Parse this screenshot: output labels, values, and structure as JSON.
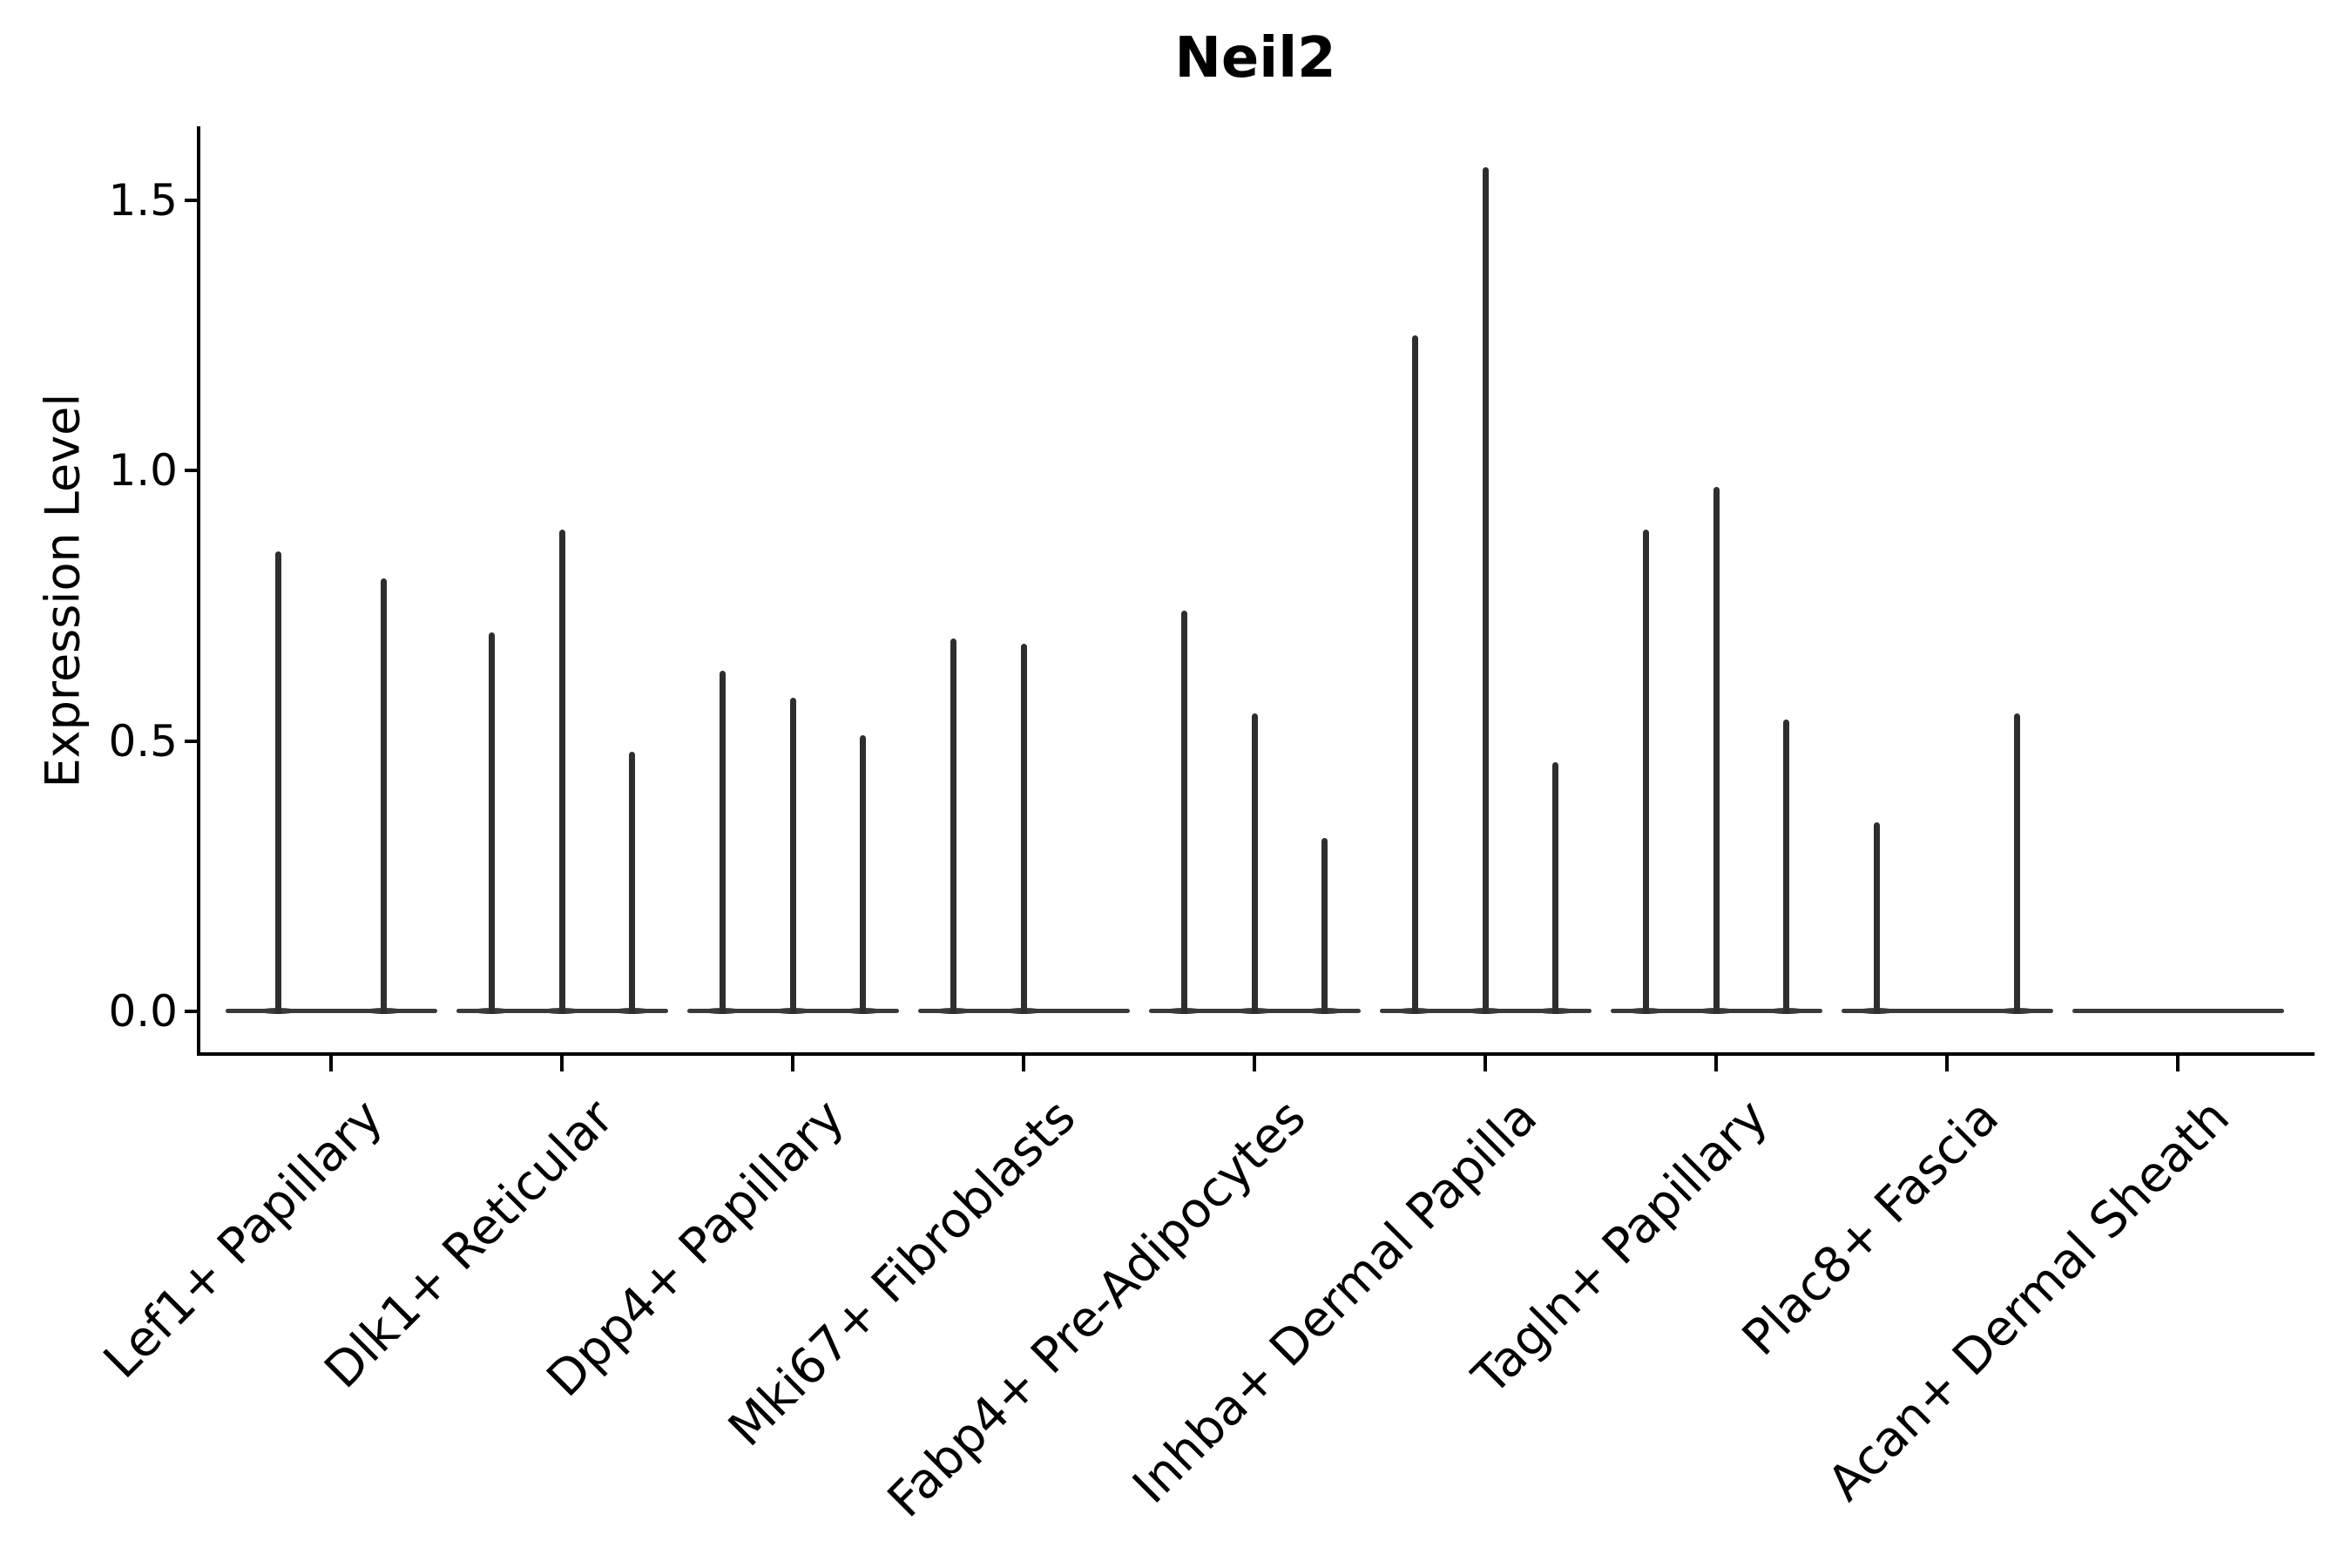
{
  "chart_data": {
    "type": "violin",
    "title": "Neil2",
    "xlabel": "",
    "ylabel": "Expression Level",
    "grid": false,
    "legend": "none",
    "background_color": "#ffffff",
    "axis_color": "#000000",
    "violin_color": "#2e2e2e",
    "baseline_color": "#3a3a3a",
    "ylim": [
      -0.08,
      1.64
    ],
    "yticks": [
      0.0,
      0.5,
      1.0,
      1.5
    ],
    "ytick_labels": [
      "0.0",
      "0.5",
      "1.0",
      "1.5"
    ],
    "categories": [
      "Lef1+ Papillary",
      "Dlk1+ Reticular",
      "Dpp4+ Papillary",
      "Mki67+ Fibroblasts",
      "Fabp4+ Pre-Adipocytes",
      "Inhba+ Dermal Papilla",
      "Tagln+ Papillary",
      "Plac8+ Fascia",
      "Acan+ Dermal Sheath"
    ],
    "groups": [
      {
        "category": "Lef1+ Papillary",
        "violins": [
          {
            "slot": 0.25,
            "max_expression": 0.85
          },
          {
            "slot": 0.75,
            "max_expression": 0.8
          }
        ]
      },
      {
        "category": "Dlk1+ Reticular",
        "violins": [
          {
            "slot": 0.1667,
            "max_expression": 0.7
          },
          {
            "slot": 0.5,
            "max_expression": 0.89
          },
          {
            "slot": 0.8333,
            "max_expression": 0.48
          }
        ]
      },
      {
        "category": "Dpp4+ Papillary",
        "violins": [
          {
            "slot": 0.1667,
            "max_expression": 0.63
          },
          {
            "slot": 0.5,
            "max_expression": 0.58
          },
          {
            "slot": 0.8333,
            "max_expression": 0.51
          }
        ]
      },
      {
        "category": "Mki67+ Fibroblasts",
        "violins": [
          {
            "slot": 0.1667,
            "max_expression": 0.69
          },
          {
            "slot": 0.5,
            "max_expression": 0.68
          }
        ]
      },
      {
        "category": "Fabp4+ Pre-Adipocytes",
        "violins": [
          {
            "slot": 0.1667,
            "max_expression": 0.74
          },
          {
            "slot": 0.5,
            "max_expression": 0.55
          },
          {
            "slot": 0.8333,
            "max_expression": 0.32
          }
        ]
      },
      {
        "category": "Inhba+ Dermal Papilla",
        "violins": [
          {
            "slot": 0.1667,
            "max_expression": 1.25
          },
          {
            "slot": 0.5,
            "max_expression": 1.56
          },
          {
            "slot": 0.8333,
            "max_expression": 0.46
          }
        ]
      },
      {
        "category": "Tagln+ Papillary",
        "violins": [
          {
            "slot": 0.1667,
            "max_expression": 0.89
          },
          {
            "slot": 0.5,
            "max_expression": 0.97
          },
          {
            "slot": 0.8333,
            "max_expression": 0.54
          }
        ]
      },
      {
        "category": "Plac8+ Fascia",
        "violins": [
          {
            "slot": 0.1667,
            "max_expression": 0.35
          },
          {
            "slot": 0.8333,
            "max_expression": 0.55
          }
        ]
      },
      {
        "category": "Acan+ Dermal Sheath",
        "violins": []
      }
    ]
  }
}
